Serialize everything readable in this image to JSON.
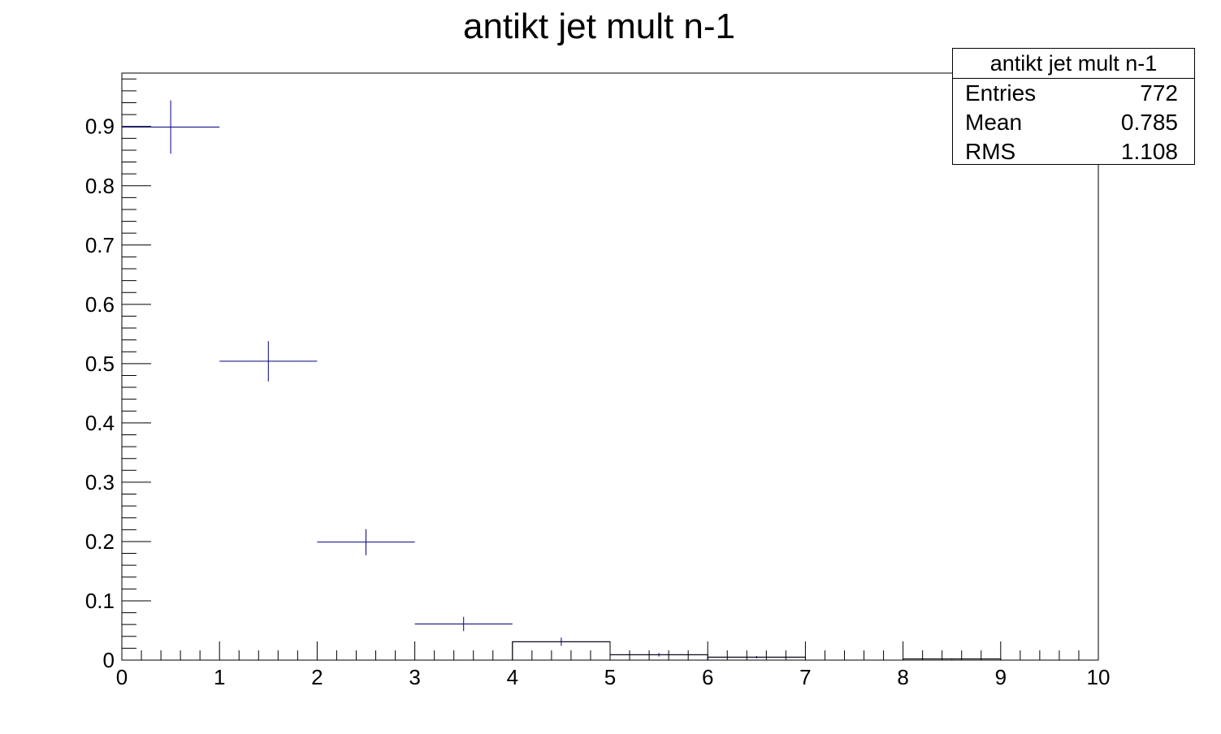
{
  "chart_data": {
    "type": "scatter",
    "title": "antikt jet mult n-1",
    "xlabel": "",
    "ylabel": "",
    "xlim": [
      0,
      10
    ],
    "ylim": [
      0,
      0.99
    ],
    "x_ticks": [
      "0",
      "1",
      "2",
      "3",
      "4",
      "5",
      "6",
      "7",
      "8",
      "9",
      "10"
    ],
    "y_ticks": [
      "0",
      "0.1",
      "0.2",
      "0.3",
      "0.4",
      "0.5",
      "0.6",
      "0.7",
      "0.8",
      "0.9"
    ],
    "series": [
      {
        "color": "#000080",
        "points": [
          {
            "x_low": 0,
            "x_high": 1,
            "y": 0.899,
            "err": 0.045
          },
          {
            "x_low": 1,
            "x_high": 2,
            "y": 0.504,
            "err": 0.034
          },
          {
            "x_low": 2,
            "x_high": 3,
            "y": 0.199,
            "err": 0.022
          },
          {
            "x_low": 3,
            "x_high": 4,
            "y": 0.061,
            "err": 0.012
          },
          {
            "x_low": 4,
            "x_high": 5,
            "y": 0.031,
            "err": 0.007
          },
          {
            "x_low": 5,
            "x_high": 6,
            "y": 0.009,
            "err": 0.003
          },
          {
            "x_low": 6,
            "x_high": 7,
            "y": 0.005,
            "err": 0.002
          },
          {
            "x_low": 8,
            "x_high": 9,
            "y": 0.002,
            "err": 0.001
          }
        ]
      }
    ],
    "grid": false,
    "legend": "top-right"
  },
  "stats": {
    "title": "antikt jet mult n-1",
    "rows": [
      {
        "label": "Entries",
        "value": "772"
      },
      {
        "label": "Mean",
        "value": "0.785"
      },
      {
        "label": "RMS",
        "value": "1.108"
      }
    ]
  }
}
